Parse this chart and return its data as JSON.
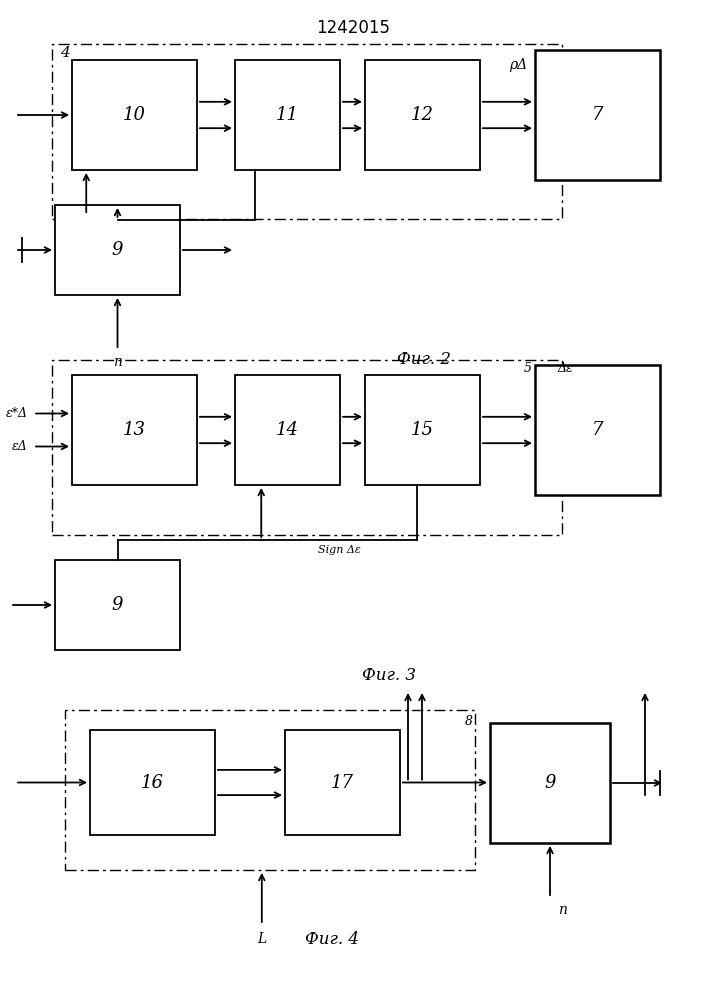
{
  "title": "1242015",
  "fig2_label": "Фиг. 2",
  "fig3_label": "Фиг. 3",
  "fig4_label": "Фиг. 4",
  "bg_color": "#ffffff"
}
